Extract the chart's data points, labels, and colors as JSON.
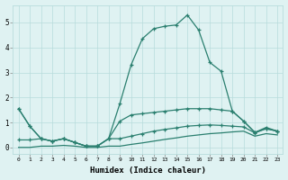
{
  "xlabel": "Humidex (Indice chaleur)",
  "x": [
    0,
    1,
    2,
    3,
    4,
    5,
    6,
    7,
    8,
    9,
    10,
    11,
    12,
    13,
    14,
    15,
    16,
    17,
    18,
    19,
    20,
    21,
    22,
    23
  ],
  "line_main": [
    1.55,
    0.85,
    0.35,
    0.25,
    0.35,
    0.2,
    0.05,
    0.05,
    0.35,
    1.75,
    3.3,
    4.35,
    4.75,
    4.85,
    4.9,
    5.3,
    4.7,
    3.4,
    3.05,
    1.45,
    1.05,
    0.6,
    0.8,
    0.65
  ],
  "line_med": [
    1.55,
    0.85,
    0.35,
    0.25,
    0.35,
    0.2,
    0.05,
    0.05,
    0.35,
    1.05,
    1.3,
    1.35,
    1.4,
    1.45,
    1.5,
    1.55,
    1.55,
    1.55,
    1.5,
    1.45,
    1.05,
    0.6,
    0.75,
    0.65
  ],
  "line_low": [
    0.3,
    0.3,
    0.35,
    0.25,
    0.35,
    0.2,
    0.05,
    0.05,
    0.35,
    0.35,
    0.45,
    0.55,
    0.65,
    0.72,
    0.78,
    0.85,
    0.88,
    0.9,
    0.88,
    0.85,
    0.82,
    0.58,
    0.75,
    0.65
  ],
  "line_base": [
    0.0,
    0.0,
    0.05,
    0.05,
    0.08,
    0.05,
    0.0,
    0.0,
    0.05,
    0.05,
    0.12,
    0.18,
    0.25,
    0.32,
    0.38,
    0.45,
    0.5,
    0.55,
    0.58,
    0.62,
    0.65,
    0.45,
    0.55,
    0.5
  ],
  "color": "#2a7f6f",
  "bg_color": "#dff2f2",
  "grid_color": "#b8dcdc",
  "ylim": [
    -0.25,
    5.7
  ],
  "yticks": [
    0,
    1,
    2,
    3,
    4,
    5
  ],
  "xlim": [
    -0.5,
    23.5
  ]
}
